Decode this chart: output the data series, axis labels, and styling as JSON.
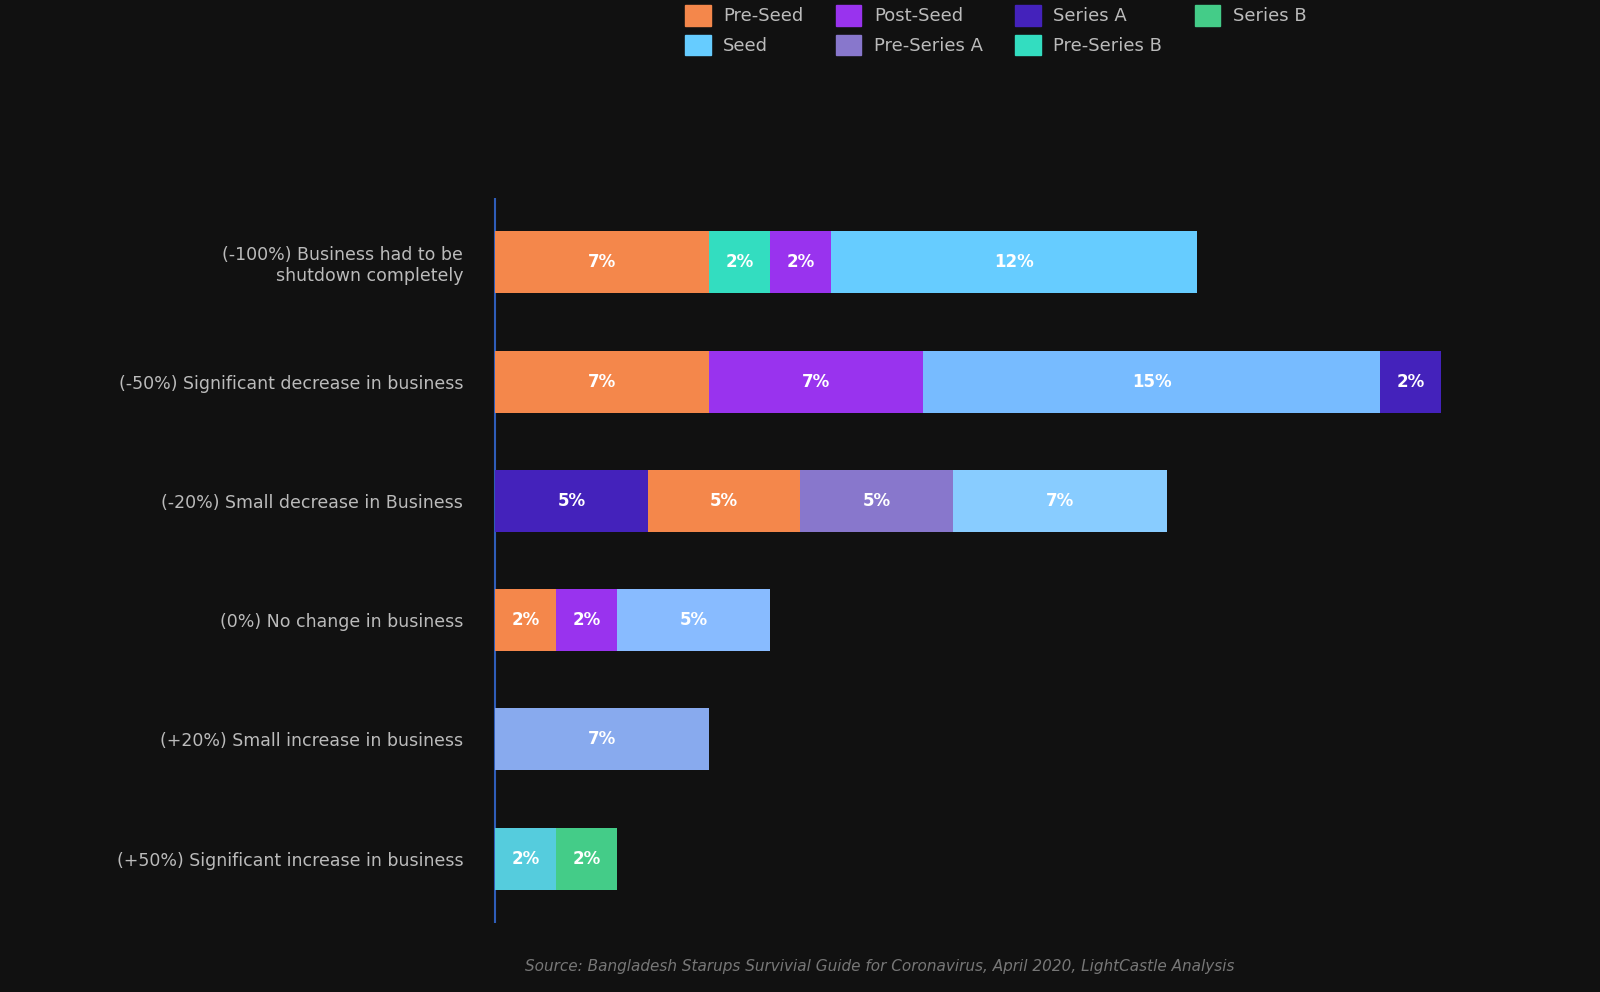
{
  "background_color": "#111111",
  "text_color": "#bbbbbb",
  "source_text": "Source: Bangladesh Starups Survivial Guide for Coronavirus, April 2020, LightCastle Analysis",
  "categories": [
    "(-100%) Business had to be\nshutdown completely",
    "(-50%) Significant decrease in business",
    "(-20%) Small decrease in Business",
    "(0%) No change in business",
    "(+20%) Small increase in business",
    "(+50%) Significant increase in business"
  ],
  "series": [
    {
      "name": "Pre-Seed",
      "color": "#f4874b"
    },
    {
      "name": "Seed",
      "color": "#55aaff"
    },
    {
      "name": "Post-Seed",
      "color": "#9933ee"
    },
    {
      "name": "Pre-Series A",
      "color": "#8877cc"
    },
    {
      "name": "Series A",
      "color": "#4422bb"
    },
    {
      "name": "Pre-Series B",
      "color": "#33ddc0"
    },
    {
      "name": "Series B",
      "color": "#44cc88"
    }
  ],
  "bars": [
    [
      {
        "series": "Pre-Seed",
        "value": 7
      },
      {
        "series": "Pre-Series B",
        "value": 2
      },
      {
        "series": "Post-Seed",
        "value": 2
      },
      {
        "series": "Seed",
        "value": 12
      }
    ],
    [
      {
        "series": "Pre-Seed",
        "value": 7
      },
      {
        "series": "Post-Seed",
        "value": 7
      },
      {
        "series": "Seed",
        "value": 15
      },
      {
        "series": "Series A",
        "value": 2
      }
    ],
    [
      {
        "series": "Series A",
        "value": 5
      },
      {
        "series": "Pre-Seed",
        "value": 5
      },
      {
        "series": "Pre-Series A",
        "value": 5
      },
      {
        "series": "Seed",
        "value": 7
      }
    ],
    [
      {
        "series": "Pre-Seed",
        "value": 2
      },
      {
        "series": "Post-Seed",
        "value": 2
      },
      {
        "series": "Seed",
        "value": 5
      }
    ],
    [
      {
        "series": "Seed",
        "value": 7
      }
    ],
    [
      {
        "series": "Seed",
        "value": 2
      },
      {
        "series": "Series B",
        "value": 2
      }
    ]
  ],
  "seed_gradient": [
    "#66bbff",
    "#aaddff",
    "#88ccff",
    "#55aaff",
    "#77bbee",
    "#44ddcc"
  ],
  "bar_height": 0.52,
  "legend_fontsize": 13,
  "label_fontsize": 12,
  "tick_fontsize": 12.5,
  "source_fontsize": 11
}
